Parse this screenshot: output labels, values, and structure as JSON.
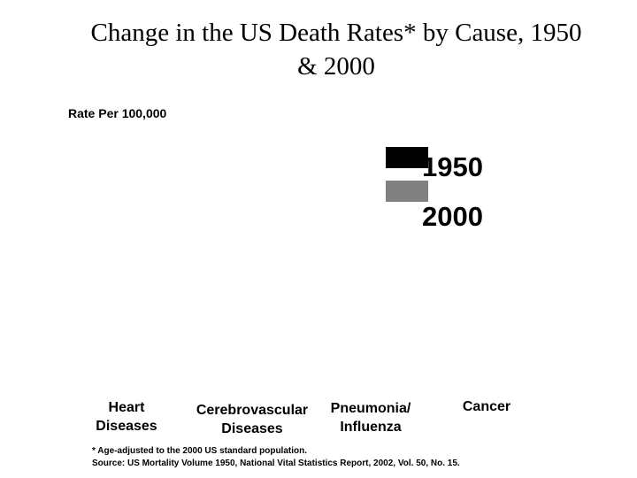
{
  "chart_data": {
    "type": "bar",
    "title": "Change in the US Death Rates* by Cause, 1950 & 2000",
    "y_label": "Rate Per 100,000",
    "categories": [
      "Heart Diseases",
      "Cerebrovascular Diseases",
      "Pneumonia/ Influenza",
      "Cancer"
    ],
    "series": [
      {
        "name": "1950",
        "color": "#000000"
      },
      {
        "name": "2000",
        "color": "#808080"
      }
    ],
    "footnote": "* Age-adjusted to the 2000 US standard population.",
    "source": "Source: US Mortality Volume 1950, National Vital Statistics Report, 2002, Vol. 50, No. 15."
  }
}
